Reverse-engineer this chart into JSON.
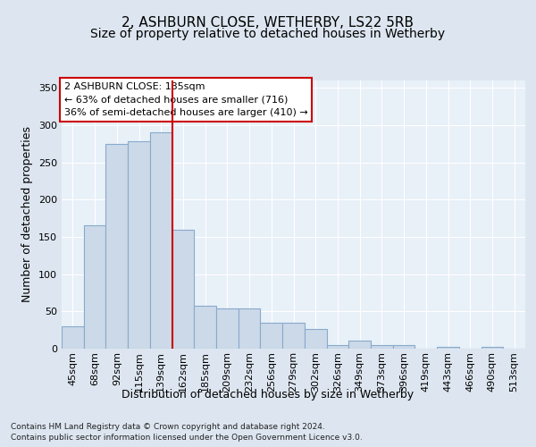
{
  "title1": "2, ASHBURN CLOSE, WETHERBY, LS22 5RB",
  "title2": "Size of property relative to detached houses in Wetherby",
  "xlabel": "Distribution of detached houses by size in Wetherby",
  "ylabel": "Number of detached properties",
  "categories": [
    "45sqm",
    "68sqm",
    "92sqm",
    "115sqm",
    "139sqm",
    "162sqm",
    "185sqm",
    "209sqm",
    "232sqm",
    "256sqm",
    "279sqm",
    "302sqm",
    "326sqm",
    "349sqm",
    "373sqm",
    "396sqm",
    "419sqm",
    "443sqm",
    "466sqm",
    "490sqm",
    "513sqm"
  ],
  "values": [
    30,
    166,
    275,
    278,
    290,
    160,
    58,
    54,
    54,
    35,
    35,
    27,
    5,
    11,
    5,
    5,
    0,
    3,
    0,
    3,
    0
  ],
  "bar_color": "#ccd9e8",
  "bar_edge_color": "#88aacc",
  "vline_x": 4.5,
  "vline_color": "#cc0000",
  "annotation_text": "2 ASHBURN CLOSE: 135sqm\n← 63% of detached houses are smaller (716)\n36% of semi-detached houses are larger (410) →",
  "annotation_box_color": "#ffffff",
  "annotation_box_edge": "#cc0000",
  "bg_color": "#dde6f0",
  "plot_bg_color": "#e8f0f8",
  "grid_color": "#ffffff",
  "footer_line1": "Contains HM Land Registry data © Crown copyright and database right 2024.",
  "footer_line2": "Contains public sector information licensed under the Open Government Licence v3.0.",
  "ylim": [
    0,
    360
  ],
  "yticks": [
    0,
    50,
    100,
    150,
    200,
    250,
    300,
    350
  ],
  "title1_fontsize": 11,
  "title2_fontsize": 10,
  "xlabel_fontsize": 9,
  "ylabel_fontsize": 9,
  "tick_fontsize": 8,
  "annotation_fontsize": 8,
  "footer_fontsize": 6.5
}
